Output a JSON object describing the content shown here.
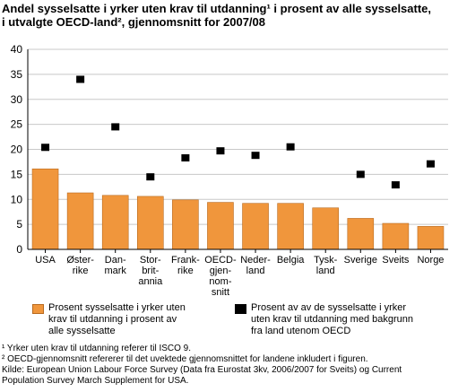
{
  "chart_data": {
    "type": "bar",
    "title_lines": [
      "Andel sysselsatte i yrker uten krav til utdanning¹ i prosent av alle sysselsatte,",
      "i utvalgte OECD-land², gjennomsnitt for 2007/08"
    ],
    "categories": [
      [
        "USA"
      ],
      [
        "Øster-",
        "rike"
      ],
      [
        "Dan-",
        "mark"
      ],
      [
        "Stor-",
        "brit-",
        "annia"
      ],
      [
        "Frank-",
        "rike"
      ],
      [
        "OECD-",
        "gjen-",
        "nom-",
        "snitt"
      ],
      [
        "Neder-",
        "land"
      ],
      [
        "Belgia"
      ],
      [
        "Tysk-",
        "land"
      ],
      [
        "Sverige"
      ],
      [
        "Sveits"
      ],
      [
        "Norge"
      ]
    ],
    "series": [
      {
        "name": "Prosent sysselsatte i yrker uten krav til utdanning i prosent av alle sysselsatte",
        "kind": "bar",
        "color": "#f0963c",
        "values": [
          16.1,
          11.3,
          10.8,
          10.6,
          9.9,
          9.4,
          9.2,
          9.2,
          8.3,
          6.2,
          5.2,
          4.6
        ]
      },
      {
        "name": "Prosent av av de sysselsatte i yrker uten krav til utdanning med bakgrunn fra land utenom OECD",
        "kind": "marker",
        "color": "#000000",
        "values": [
          20.4,
          34.0,
          24.5,
          14.5,
          18.3,
          19.7,
          18.8,
          20.5,
          null,
          15.0,
          12.9,
          17.1
        ]
      }
    ],
    "ylim": [
      0,
      40
    ],
    "yticks": [
      "0",
      "5",
      "10",
      "15",
      "20",
      "25",
      "30",
      "35",
      "40"
    ],
    "grid": true,
    "legend_position": "bottom",
    "legend": [
      [
        "Prosent sysselsatte i yrker uten",
        "krav til utdanning i prosent av",
        "alle sysselsatte"
      ],
      [
        "Prosent av av de sysselsatte i yrker",
        "uten krav til utdanning med bakgrunn",
        "fra land utenom OECD"
      ]
    ]
  },
  "footnotes": [
    "¹ Yrker uten krav til utdanning referer til ISCO 9.",
    "² OECD-gjennomsnitt refererer til det uvektede gjennomsnittet for landene inkludert i figuren.",
    "Kilde: European Union Labour Force Survey (Data fra Eurostat 3kv, 2006/2007 for Sveits) og Current",
    "Population Survey March Supplement for USA."
  ]
}
